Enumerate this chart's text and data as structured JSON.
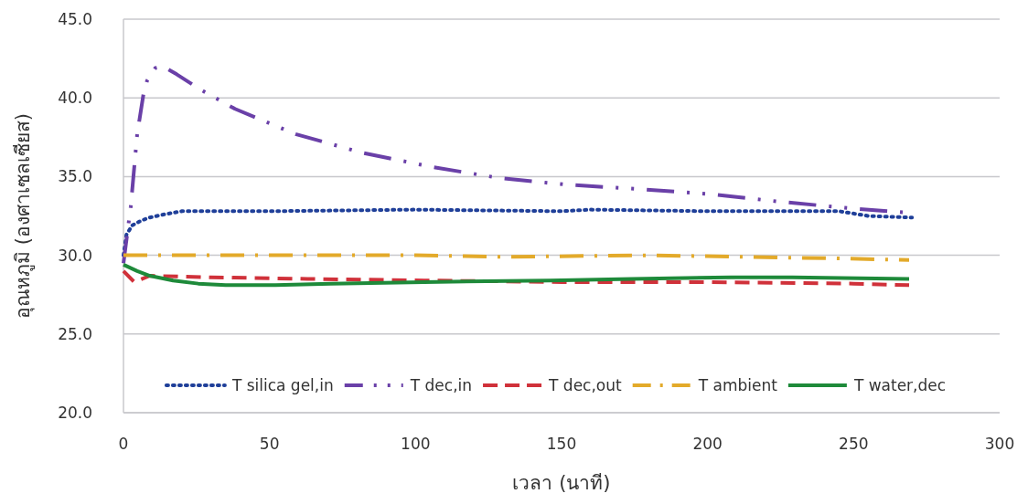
{
  "chart_data": {
    "type": "line",
    "xlabel": "เวลา (นาที)",
    "ylabel": "อุณหภูมิ (องศาเซลเซียส)",
    "xlim": [
      0,
      300
    ],
    "xticks": [
      0,
      50,
      100,
      150,
      200,
      250,
      300
    ],
    "ylim": [
      20,
      45
    ],
    "yticks": [
      {
        "value": 20,
        "label": "20.0"
      },
      {
        "value": 25,
        "label": "25.0"
      },
      {
        "value": 30,
        "label": "30.0"
      },
      {
        "value": 35,
        "label": "35.0"
      },
      {
        "value": 40,
        "label": "40.0"
      },
      {
        "value": 45,
        "label": "45.0"
      }
    ],
    "grid": "y",
    "legend": "bottom",
    "marker": "none",
    "series": [
      {
        "name": "T silica gel,in",
        "color": "#1f3f99",
        "line_style": "dotted",
        "x": [
          0,
          1,
          3,
          6,
          9,
          14,
          20,
          50,
          100,
          150,
          160,
          200,
          245,
          255,
          270
        ],
        "values": [
          30.0,
          31.3,
          31.9,
          32.2,
          32.4,
          32.6,
          32.8,
          32.8,
          32.9,
          32.8,
          32.9,
          32.8,
          32.8,
          32.5,
          32.4
        ]
      },
      {
        "name": "T dec,in",
        "color": "#6a40a8",
        "line_style": "dashdotdot",
        "x": [
          0,
          2.5,
          4.7,
          6.9,
          8.1,
          10.9,
          13.5,
          18.2,
          26.6,
          38.2,
          58.9,
          82,
          106,
          129,
          151,
          177,
          200,
          225,
          248,
          269
        ],
        "values": [
          29.5,
          33.1,
          37.7,
          40.3,
          41.1,
          41.9,
          42.0,
          41.5,
          40.5,
          39.3,
          37.7,
          36.5,
          35.6,
          34.9,
          34.5,
          34.2,
          33.9,
          33.4,
          33.0,
          32.7
        ]
      },
      {
        "name": "T dec,out",
        "color": "#d0313a",
        "line_style": "dashed",
        "x": [
          0,
          3.7,
          9,
          30,
          63,
          103,
          150,
          200,
          250,
          269
        ],
        "values": [
          29.0,
          28.3,
          28.7,
          28.6,
          28.5,
          28.4,
          28.3,
          28.3,
          28.2,
          28.1
        ]
      },
      {
        "name": "T ambient",
        "color": "#e3aa2a",
        "line_style": "dashdot",
        "x": [
          0,
          50,
          100,
          130,
          180,
          245,
          269
        ],
        "values": [
          30.0,
          30.0,
          30.0,
          29.9,
          30.0,
          29.8,
          29.7
        ]
      },
      {
        "name": "T water,dec",
        "color": "#1e8a3a",
        "line_style": "solid",
        "x": [
          0,
          4.7,
          9,
          17,
          25.6,
          35,
          52,
          71,
          103,
          146,
          174,
          208,
          229,
          269
        ],
        "values": [
          29.4,
          29.0,
          28.7,
          28.4,
          28.2,
          28.1,
          28.1,
          28.2,
          28.3,
          28.4,
          28.5,
          28.6,
          28.6,
          28.5
        ]
      }
    ]
  }
}
